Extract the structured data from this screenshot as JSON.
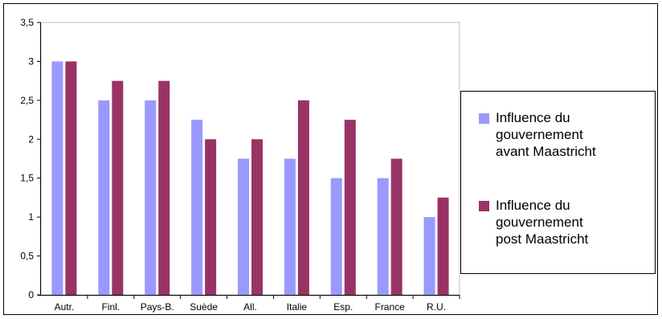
{
  "chart_data": {
    "type": "bar",
    "title": "",
    "xlabel": "",
    "ylabel": "",
    "categories": [
      "Autr.",
      "Finl.",
      "Pays-B.",
      "Suède",
      "All.",
      "Italie",
      "Esp.",
      "France",
      "R.U."
    ],
    "ylim": [
      0,
      3.5
    ],
    "yticks": [
      "0",
      "0,5",
      "1",
      "1,5",
      "2",
      "2,5",
      "3",
      "3,5"
    ],
    "grid": false,
    "legend_position": "right",
    "series": [
      {
        "name": "Influence du gouvernement avant Maastricht",
        "legend_text": "Influence du\ngouvernement\navant Maastricht",
        "color": "#9999ff",
        "values": [
          3,
          2.5,
          2.5,
          2.25,
          1.75,
          1.75,
          1.5,
          1.5,
          1
        ]
      },
      {
        "name": "Influence du gouvernement post Maastricht",
        "legend_text": "Influence du\ngouvernement\npost Maastricht",
        "color": "#993366",
        "values": [
          3,
          2.75,
          2.75,
          2,
          2,
          2.5,
          2.25,
          1.75,
          1.25
        ]
      }
    ]
  }
}
